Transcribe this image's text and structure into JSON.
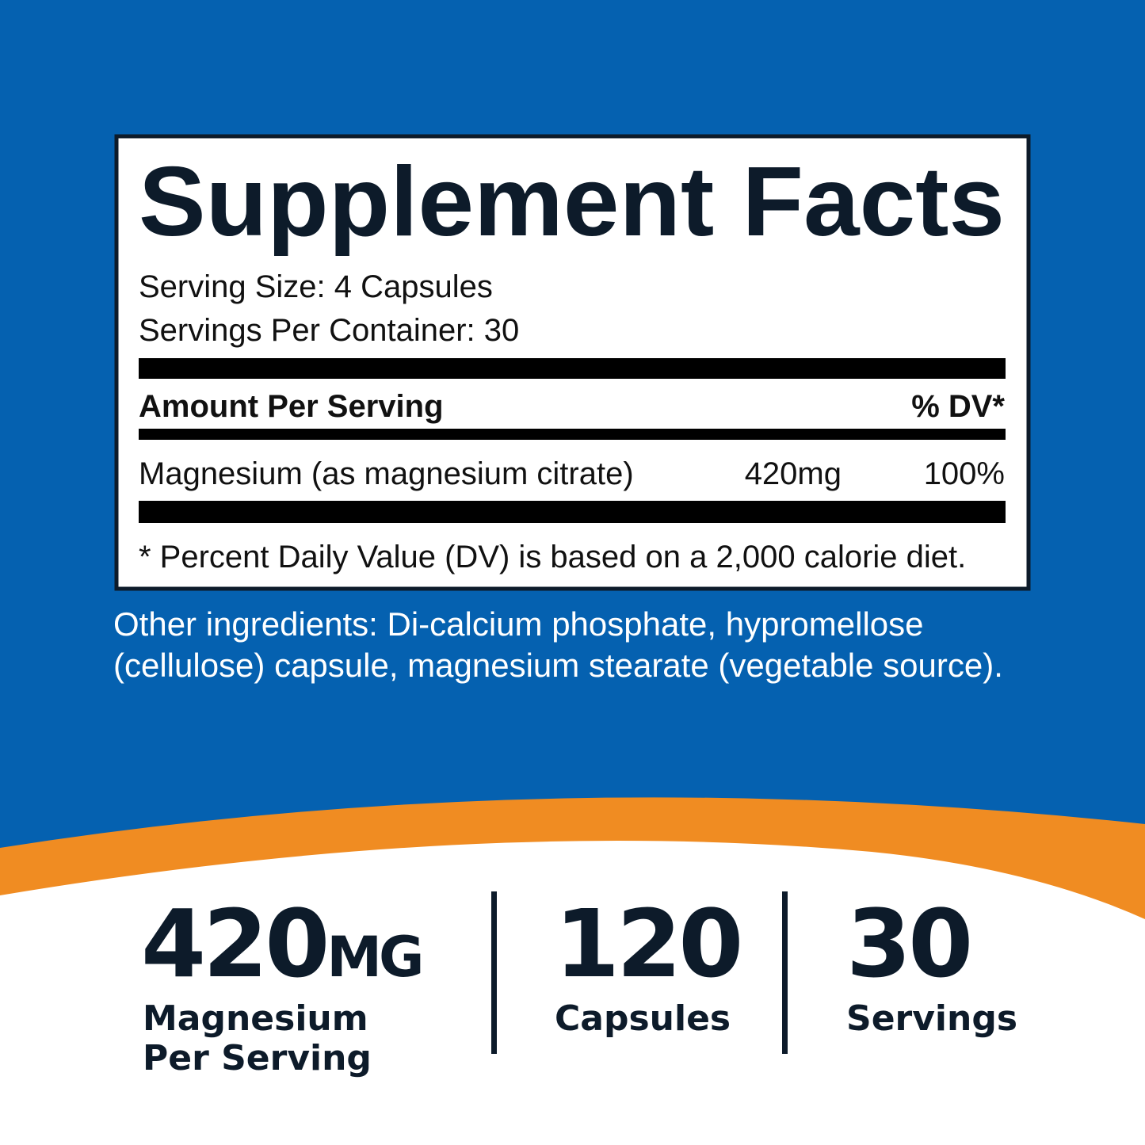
{
  "label": {
    "title": "Supplement Facts",
    "serving_size": "Serving Size: 4 Capsules",
    "servings_per_container": "Servings Per Container: 30",
    "header": {
      "amount": "Amount Per Serving",
      "dv": "% DV*"
    },
    "rows": [
      [
        "Magnesium (as magnesium citrate)",
        "420mg",
        "100%"
      ]
    ],
    "footnote": "* Percent Daily Value (DV) is based on a 2,000 calorie diet."
  },
  "other_ingredients": [
    "Other ingredients: Di-calcium phosphate, hypromellose",
    "(cellulose) capsule, magnesium stearate (vegetable source)."
  ],
  "stats": [
    {
      "value": "420",
      "unit": "MG",
      "caption": [
        "Magnesium",
        "Per Serving"
      ]
    },
    {
      "value": "120",
      "caption": [
        "Capsules"
      ]
    },
    {
      "value": "30",
      "caption": [
        "Servings"
      ]
    }
  ]
}
